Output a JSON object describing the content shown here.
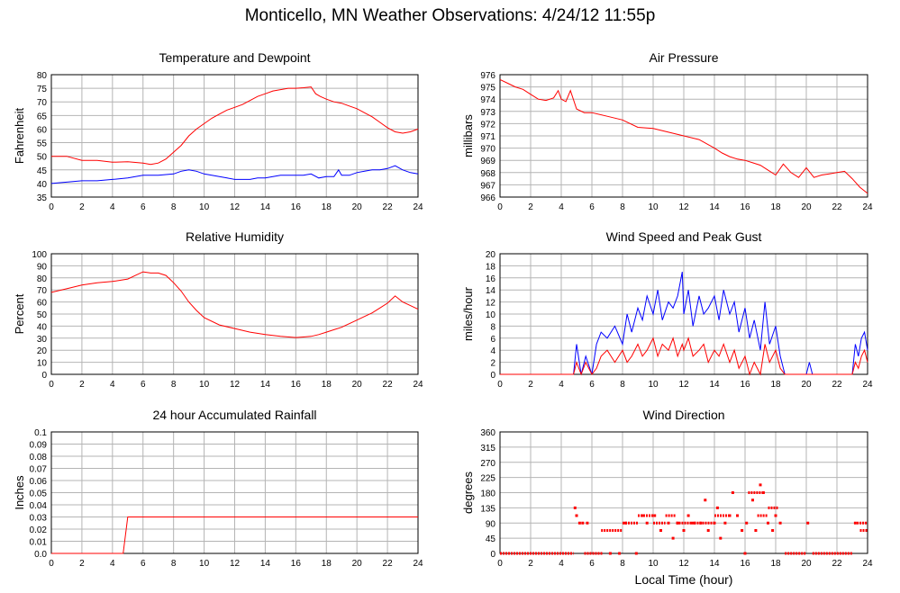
{
  "page": {
    "title": "Monticello, MN Weather Observations: 4/24/12 11:55p"
  },
  "colors": {
    "primary": "#ff0000",
    "secondary": "#0000ff",
    "grid": "#b4b4b4"
  },
  "chart_data": [
    {
      "id": "temperature",
      "type": "line",
      "title": "Temperature and Dewpoint",
      "xlabel": "",
      "ylabel": "Fahrenheit",
      "xlim": [
        0,
        24
      ],
      "ylim": [
        35,
        80
      ],
      "xticks": [
        0,
        2,
        4,
        6,
        8,
        10,
        12,
        14,
        16,
        18,
        20,
        22,
        24
      ],
      "yticks": [
        35,
        40,
        45,
        50,
        55,
        60,
        65,
        70,
        75,
        80
      ],
      "grid": true,
      "series": [
        {
          "color": "#ff0000",
          "x": [
            0,
            1,
            2,
            3,
            4,
            5,
            6,
            6.5,
            7,
            7.5,
            8,
            8.5,
            9,
            9.5,
            10,
            10.5,
            11,
            11.5,
            12,
            12.5,
            13,
            13.5,
            14,
            14.5,
            15,
            15.5,
            16,
            16.5,
            17,
            17.3,
            17.6,
            18,
            18.5,
            19,
            19.5,
            20,
            20.5,
            21,
            21.5,
            22,
            22.5,
            23,
            23.5,
            24
          ],
          "y": [
            50,
            50,
            48.5,
            48.5,
            47.8,
            48,
            47.5,
            47,
            47.5,
            49,
            51.5,
            54,
            57.5,
            60,
            62,
            64,
            65.5,
            67,
            68,
            69,
            70.5,
            72,
            73,
            74,
            74.5,
            75,
            75,
            75.2,
            75.5,
            73,
            72,
            71,
            70,
            69.5,
            68.5,
            67.5,
            66,
            64.5,
            62.5,
            60.5,
            59,
            58.5,
            59,
            60
          ]
        },
        {
          "color": "#0000ff",
          "x": [
            0,
            1,
            2,
            3,
            4,
            5,
            6,
            7,
            8,
            8.5,
            9,
            9.5,
            10,
            10.5,
            11,
            11.5,
            12,
            12.5,
            13,
            13.5,
            14,
            14.5,
            15,
            15.5,
            16,
            16.5,
            17,
            17.5,
            18,
            18.5,
            18.8,
            19,
            19.5,
            20,
            20.5,
            21,
            21.5,
            22,
            22.5,
            23,
            23.5,
            24
          ],
          "y": [
            40,
            40.5,
            41,
            41,
            41.5,
            42,
            43,
            43,
            43.5,
            44.5,
            45,
            44.5,
            43.5,
            43,
            42.5,
            42,
            41.5,
            41.5,
            41.5,
            42,
            42,
            42.5,
            43,
            43,
            43,
            43,
            43.5,
            42,
            42.5,
            42.5,
            45,
            43,
            43,
            44,
            44.5,
            45,
            45,
            45.5,
            46.5,
            45,
            44,
            43.5
          ]
        }
      ]
    },
    {
      "id": "pressure",
      "type": "line",
      "title": "Air Pressure",
      "xlabel": "",
      "ylabel": "millibars",
      "xlim": [
        0,
        24
      ],
      "ylim": [
        966,
        976
      ],
      "xticks": [
        0,
        2,
        4,
        6,
        8,
        10,
        12,
        14,
        16,
        18,
        20,
        22,
        24
      ],
      "yticks": [
        966,
        967,
        968,
        969,
        970,
        971,
        972,
        973,
        974,
        975,
        976
      ],
      "grid": true,
      "series": [
        {
          "color": "#ff0000",
          "x": [
            0,
            0.5,
            1,
            1.5,
            2,
            2.5,
            3,
            3.5,
            3.8,
            4,
            4.3,
            4.6,
            5,
            5.5,
            6,
            7,
            8,
            9,
            10,
            11,
            12,
            13,
            14,
            14.5,
            15,
            15.5,
            16,
            16.5,
            17,
            17.5,
            18,
            18.5,
            19,
            19.5,
            20,
            20.5,
            21,
            21.5,
            22,
            22.5,
            23,
            23.5,
            24
          ],
          "y": [
            975.6,
            975.3,
            975,
            974.8,
            974.4,
            974,
            973.9,
            974.1,
            974.7,
            974,
            973.8,
            974.7,
            973.2,
            972.9,
            972.9,
            972.6,
            972.3,
            971.7,
            971.6,
            971.3,
            971,
            970.7,
            970,
            969.6,
            969.3,
            969.1,
            969,
            968.8,
            968.6,
            968.2,
            967.8,
            968.7,
            968,
            967.6,
            968.4,
            967.6,
            967.8,
            967.9,
            968,
            968.1,
            967.5,
            966.8,
            966.3
          ]
        }
      ]
    },
    {
      "id": "humidity",
      "type": "line",
      "title": "Relative Humidity",
      "xlabel": "",
      "ylabel": "Percent",
      "xlim": [
        0,
        24
      ],
      "ylim": [
        0,
        100
      ],
      "xticks": [
        0,
        2,
        4,
        6,
        8,
        10,
        12,
        14,
        16,
        18,
        20,
        22,
        24
      ],
      "yticks": [
        0,
        10,
        20,
        30,
        40,
        50,
        60,
        70,
        80,
        90,
        100
      ],
      "grid": true,
      "series": [
        {
          "color": "#ff0000",
          "x": [
            0,
            1,
            2,
            3,
            4,
            5,
            5.5,
            6,
            6.5,
            7,
            7.5,
            8,
            8.5,
            9,
            9.5,
            10,
            11,
            12,
            13,
            14,
            15,
            16,
            16.5,
            17,
            17.5,
            18,
            18.5,
            19,
            19.5,
            20,
            20.5,
            21,
            21.5,
            22,
            22.5,
            23,
            23.5,
            24
          ],
          "y": [
            68,
            71,
            74,
            76,
            77,
            79,
            82,
            85,
            84,
            84,
            82,
            76,
            69,
            60,
            53,
            47,
            41,
            38,
            35,
            33,
            31.5,
            30.5,
            31,
            31.5,
            33,
            35,
            37,
            39,
            42,
            45,
            48,
            51,
            55,
            59,
            65,
            60,
            57,
            54
          ]
        }
      ]
    },
    {
      "id": "wind",
      "type": "line",
      "title": "Wind Speed and Peak Gust",
      "xlabel": "",
      "ylabel": "miles/hour",
      "xlim": [
        0,
        24
      ],
      "ylim": [
        0,
        20
      ],
      "xticks": [
        0,
        2,
        4,
        6,
        8,
        10,
        12,
        14,
        16,
        18,
        20,
        22,
        24
      ],
      "yticks": [
        0,
        2,
        4,
        6,
        8,
        10,
        12,
        14,
        16,
        18,
        20
      ],
      "grid": true,
      "series": [
        {
          "color": "#0000ff",
          "x": [
            0,
            4.8,
            5,
            5.3,
            5.6,
            6,
            6.3,
            6.6,
            7,
            7.5,
            8,
            8.3,
            8.6,
            9,
            9.3,
            9.6,
            10,
            10.3,
            10.6,
            11,
            11.3,
            11.6,
            11.9,
            12,
            12.3,
            12.6,
            13,
            13.3,
            13.6,
            14,
            14.3,
            14.6,
            15,
            15.3,
            15.6,
            16,
            16.3,
            16.6,
            17,
            17.3,
            17.6,
            18,
            18.3,
            18.6,
            19,
            20,
            20.2,
            20.4,
            20.6,
            23,
            23.2,
            23.4,
            23.6,
            23.8,
            24
          ],
          "y": [
            0,
            0,
            5,
            0,
            3,
            0,
            5,
            7,
            6,
            8,
            5,
            10,
            7,
            11,
            9,
            13,
            10,
            14,
            9,
            12,
            11,
            13,
            17,
            10,
            14,
            8,
            13,
            10,
            11,
            13,
            9,
            14,
            10,
            12,
            7,
            11,
            6,
            9,
            4,
            12,
            5,
            8,
            3,
            0,
            0,
            0,
            2,
            0,
            0,
            0,
            5,
            3,
            6,
            7,
            4
          ]
        },
        {
          "color": "#ff0000",
          "x": [
            0,
            4.8,
            5,
            5.3,
            5.6,
            6,
            6.3,
            6.6,
            7,
            7.5,
            8,
            8.3,
            8.6,
            9,
            9.3,
            9.6,
            10,
            10.3,
            10.6,
            11,
            11.3,
            11.6,
            11.9,
            12,
            12.3,
            12.6,
            13,
            13.3,
            13.6,
            14,
            14.3,
            14.6,
            15,
            15.3,
            15.6,
            16,
            16.3,
            16.6,
            17,
            17.3,
            17.6,
            18,
            18.3,
            18.6,
            19,
            23,
            23.2,
            23.4,
            23.6,
            23.8,
            24
          ],
          "y": [
            0,
            0,
            2,
            0,
            2,
            0,
            1,
            3,
            4,
            2,
            4,
            2,
            3,
            5,
            3,
            4,
            6,
            3,
            5,
            4,
            6,
            3,
            5,
            4,
            6,
            3,
            4,
            5,
            2,
            4,
            3,
            5,
            2,
            4,
            1,
            3,
            0,
            2,
            0,
            5,
            2,
            4,
            1,
            0,
            0,
            0,
            2,
            1,
            3,
            4,
            2
          ]
        }
      ]
    },
    {
      "id": "rainfall",
      "type": "line",
      "title": "24 hour Accumulated Rainfall",
      "xlabel": "",
      "ylabel": "Inches",
      "xlim": [
        0,
        24
      ],
      "ylim": [
        0,
        0.1
      ],
      "xticks": [
        0,
        2,
        4,
        6,
        8,
        10,
        12,
        14,
        16,
        18,
        20,
        22,
        24
      ],
      "yticks": [
        0.0,
        0.01,
        0.02,
        0.03,
        0.04,
        0.05,
        0.06,
        0.07,
        0.08,
        0.09,
        0.1
      ],
      "ytick_labels": [
        "0.0",
        "0.01",
        "0.02",
        "0.03",
        "0.04",
        "0.05",
        "0.06",
        "0.07",
        "0.08",
        "0.09",
        "0.1"
      ],
      "grid": true,
      "series": [
        {
          "color": "#ff0000",
          "x": [
            0,
            4.7,
            4.9,
            5.0,
            5.1,
            24
          ],
          "y": [
            0,
            0,
            0.02,
            0.03,
            0.03,
            0.03
          ]
        }
      ]
    },
    {
      "id": "direction",
      "type": "scatter",
      "title": "Wind Direction",
      "xlabel": "Local Time (hour)",
      "ylabel": "degrees",
      "xlim": [
        0,
        24
      ],
      "ylim": [
        0,
        360
      ],
      "xticks": [
        0,
        2,
        4,
        6,
        8,
        10,
        12,
        14,
        16,
        18,
        20,
        22,
        24
      ],
      "yticks": [
        0,
        45,
        90,
        135,
        180,
        225,
        270,
        315,
        360
      ],
      "grid": true,
      "series": [
        {
          "color": "#ff0000",
          "segments": [
            [
              0,
              4.8,
              0
            ],
            [
              5.5,
              6.7,
              0
            ],
            [
              18.6,
              20.0,
              0
            ],
            [
              20.4,
              23.0,
              0
            ],
            [
              6.6,
              8.0,
              68
            ],
            [
              8.0,
              9.0,
              90
            ],
            [
              9.0,
              10.0,
              112
            ],
            [
              10.0,
              10.8,
              90
            ],
            [
              10.8,
              11.5,
              112
            ],
            [
              11.5,
              12.5,
              90
            ],
            [
              12.5,
              14.0,
              90
            ],
            [
              14.0,
              15.0,
              112
            ],
            [
              16.2,
              17.2,
              180
            ],
            [
              16.8,
              17.5,
              112
            ],
            [
              17.5,
              18.2,
              135
            ],
            [
              23.3,
              24.0,
              90
            ],
            [
              23.5,
              24.0,
              68
            ]
          ],
          "x": [
            4.9,
            5.0,
            5.2,
            5.4,
            5.7,
            7.2,
            7.8,
            8.2,
            8.9,
            9.3,
            9.6,
            10.1,
            10.5,
            11.0,
            11.3,
            11.6,
            12.0,
            12.3,
            12.7,
            13.1,
            13.4,
            13.6,
            14.0,
            14.2,
            14.4,
            14.7,
            15.0,
            15.2,
            15.5,
            15.8,
            16.0,
            16.1,
            16.5,
            16.7,
            17.0,
            17.2,
            17.5,
            17.8,
            18.0,
            18.3,
            20.1,
            23.2
          ],
          "y": [
            135,
            112,
            90,
            90,
            90,
            0,
            0,
            90,
            0,
            112,
            90,
            112,
            68,
            90,
            45,
            90,
            68,
            112,
            90,
            90,
            158,
            68,
            90,
            135,
            45,
            90,
            112,
            180,
            112,
            68,
            0,
            90,
            158,
            68,
            203,
            180,
            90,
            68,
            112,
            90,
            90,
            90
          ]
        }
      ]
    }
  ]
}
